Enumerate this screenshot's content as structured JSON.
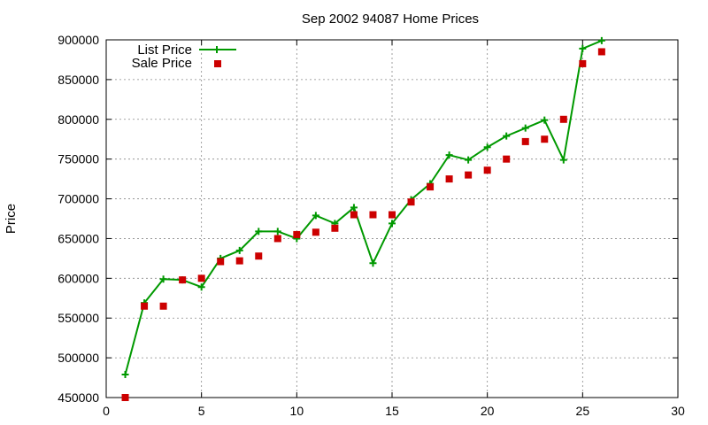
{
  "chart_data": {
    "type": "line",
    "title": "Sep 2002 94087 Home Prices",
    "xlabel": "",
    "ylabel": "Price",
    "xlim": [
      0,
      30
    ],
    "ylim": [
      450000,
      900000
    ],
    "x_ticks": [
      0,
      5,
      10,
      15,
      20,
      25,
      30
    ],
    "y_ticks": [
      450000,
      500000,
      550000,
      600000,
      650000,
      700000,
      750000,
      800000,
      850000,
      900000
    ],
    "grid": true,
    "legend_position": "top-left",
    "series": [
      {
        "name": "List Price",
        "style": "line+plus",
        "color": "#009900",
        "x": [
          1,
          2,
          3,
          4,
          5,
          6,
          7,
          8,
          9,
          10,
          11,
          12,
          13,
          14,
          15,
          16,
          17,
          18,
          19,
          20,
          21,
          22,
          23,
          24,
          25,
          26
        ],
        "y": [
          479000,
          569000,
          599000,
          598000,
          589000,
          625000,
          635000,
          659000,
          659000,
          650000,
          679000,
          669000,
          689000,
          619000,
          669000,
          699000,
          719000,
          755000,
          749000,
          765000,
          779000,
          789000,
          799000,
          749000,
          889000,
          899000
        ]
      },
      {
        "name": "Sale Price",
        "style": "square",
        "color": "#cc0000",
        "x": [
          1,
          2,
          3,
          4,
          5,
          6,
          7,
          8,
          9,
          10,
          11,
          12,
          13,
          14,
          15,
          16,
          17,
          18,
          19,
          20,
          21,
          22,
          23,
          24,
          25,
          26
        ],
        "y": [
          450000,
          565000,
          565000,
          598000,
          600000,
          621000,
          622000,
          628000,
          650000,
          655000,
          658000,
          663000,
          680000,
          680000,
          680000,
          696000,
          715000,
          725000,
          730000,
          736000,
          750000,
          772000,
          775000,
          800000,
          870000,
          885000
        ]
      }
    ]
  }
}
